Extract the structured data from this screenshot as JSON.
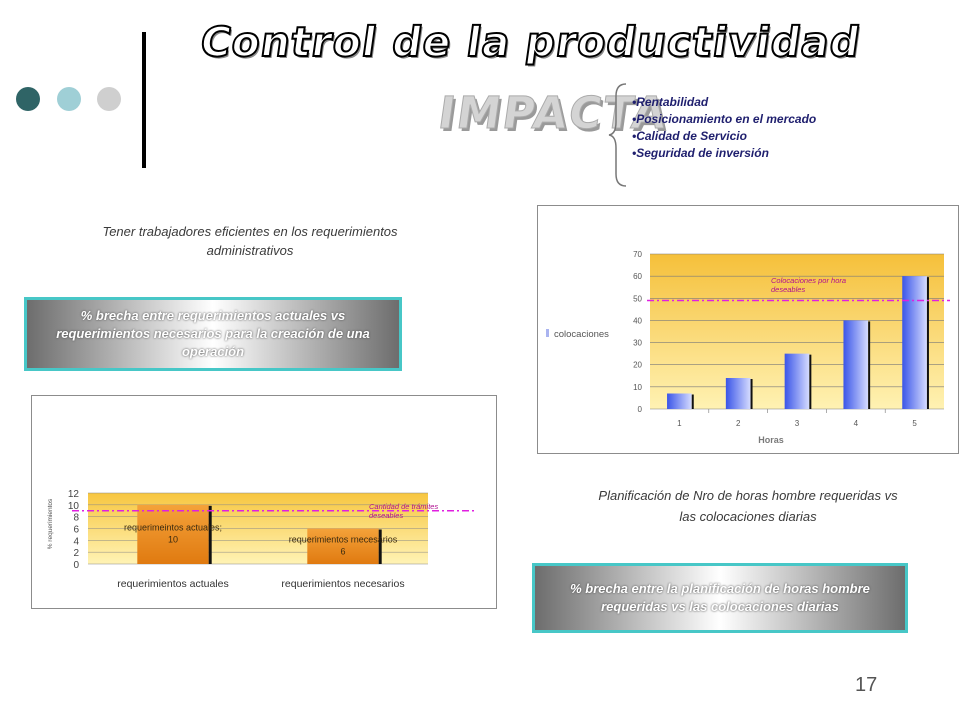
{
  "title": "Control de la productividad",
  "impacta": "IMPACTA",
  "bullets": [
    "•Rentabilidad",
    "•Posicionamiento en el mercado",
    "•Calidad de Servicio",
    "•Seguridad de inversión"
  ],
  "left_caption": "Tener trabajadores eficientes en los requerimientos administrativos",
  "left_box": "% brecha entre requerimientos actuales vs requerimientos necesarios para la creación de una operación",
  "right_caption": "Planificación de Nro de horas hombre requeridas vs las colocaciones diarias",
  "right_box": "% brecha entre la planificación de horas hombre requeridas vs las colocaciones diarias",
  "page_number": "17",
  "colors": {
    "accent_teal": "#47c7c7",
    "dot_dark": "#2f6466",
    "dot_light": "#9fcfd6",
    "dot_grey": "#cfcfcf",
    "threshold_line": "#e020e0",
    "bar_blue": "#5c6fe0",
    "bar_orange": "#f08a1e"
  },
  "chart_data": [
    {
      "type": "bar",
      "categories": [
        "1",
        "2",
        "3",
        "4",
        "5"
      ],
      "series": [
        {
          "name": "colocaciones",
          "values": [
            7,
            14,
            25,
            40,
            60
          ]
        }
      ],
      "xlabel": "Horas",
      "ylabel": "",
      "ylim": [
        0,
        70
      ],
      "yticks": [
        "0",
        "10",
        "20",
        "30",
        "40",
        "50",
        "60",
        "70"
      ],
      "threshold": {
        "value": 49,
        "label": "Colocaciones por hora deseables"
      },
      "grid": true,
      "legend": "left"
    },
    {
      "type": "bar",
      "categories": [
        "requerimientos actuales",
        "requerimientos necesarios"
      ],
      "values": [
        10,
        6
      ],
      "data_labels": [
        "requerimeintos actuales; 10",
        "requerimientos rnecesarios 6"
      ],
      "ylabel": "% requerimientos",
      "xlabel": "",
      "ylim": [
        0,
        12
      ],
      "yticks": [
        "0",
        "2",
        "4",
        "6",
        "8",
        "10",
        "12"
      ],
      "threshold": {
        "value": 9,
        "label": "Cantidad de trámites deseables"
      },
      "grid": true
    }
  ]
}
